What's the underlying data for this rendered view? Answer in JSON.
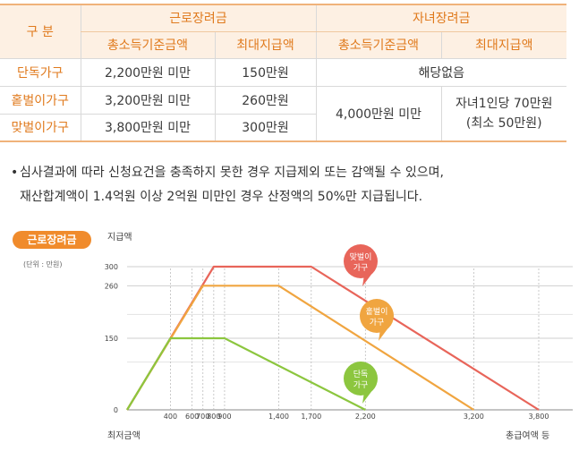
{
  "table": {
    "header": {
      "category": "구 분",
      "group1": "근로장려금",
      "group2": "자녀장려금",
      "col_income": "총소득기준금액",
      "col_max": "최대지급액",
      "col_income2": "총소득기준금액",
      "col_max2": "최대지급액"
    },
    "rows": [
      {
        "category": "단독가구",
        "income": "2,200만원 미만",
        "max": "150만원"
      },
      {
        "category": "홑벌이가구",
        "income": "3,200만원 미만",
        "max": "260만원"
      },
      {
        "category": "맞벌이가구",
        "income": "3,800만원 미만",
        "max": "300만원"
      }
    ],
    "child_single": "해당없음",
    "child_income": "4,000만원 미만",
    "child_max_line1": "자녀1인당 70만원",
    "child_max_line2": "(최소 50만원)"
  },
  "notes": {
    "bullet": "•",
    "line1": "심사결과에 따라 신청요건을 충족하지 못한 경우 지급제외 또는 감액될 수 있으며,",
    "line2": "재산합계액이 1.4억원 이상 2억원 미만인 경우 산정액의 50%만 지급됩니다."
  },
  "chart_badge": "근로장려금",
  "chart_unit": "(단위 : 만원)",
  "chart_data": {
    "type": "line",
    "ylabel": "지급액",
    "xlabel_left": "최저금액",
    "xlabel_right": "총급여액 등",
    "x_ticks": [
      "400",
      "600",
      "700",
      "800",
      "900",
      "1,400",
      "1,700",
      "2,200",
      "3,200",
      "3,800"
    ],
    "y_ticks": [
      "0",
      "150",
      "260",
      "300"
    ],
    "series": [
      {
        "name": "맞벌이 가구",
        "color": "#e8655a",
        "points": [
          [
            0,
            0
          ],
          [
            800,
            300
          ],
          [
            1700,
            300
          ],
          [
            3800,
            0
          ]
        ]
      },
      {
        "name": "홑벌이 가구",
        "color": "#f0a540",
        "points": [
          [
            0,
            0
          ],
          [
            700,
            260
          ],
          [
            1400,
            260
          ],
          [
            3200,
            0
          ]
        ]
      },
      {
        "name": "단독 가구",
        "color": "#8cc63f",
        "points": [
          [
            0,
            0
          ],
          [
            400,
            150
          ],
          [
            900,
            150
          ],
          [
            2200,
            0
          ]
        ]
      }
    ],
    "bubbles": [
      {
        "line1": "맞벌이",
        "line2": "가구",
        "color": "#e8655a"
      },
      {
        "line1": "홑벌이",
        "line2": "가구",
        "color": "#f0a540"
      },
      {
        "line1": "단독",
        "line2": "가구",
        "color": "#8cc63f"
      }
    ]
  }
}
